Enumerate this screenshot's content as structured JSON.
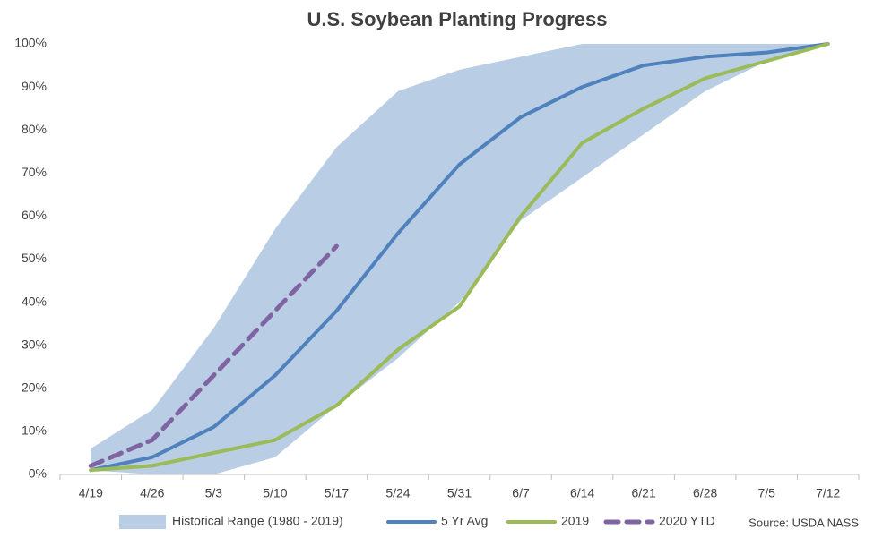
{
  "chart_data": {
    "type": "line",
    "title": "U.S. Soybean Planting Progress",
    "categories": [
      "4/19",
      "4/26",
      "5/3",
      "5/10",
      "5/17",
      "5/24",
      "5/31",
      "6/7",
      "6/14",
      "6/21",
      "6/28",
      "7/5",
      "7/12"
    ],
    "series": [
      {
        "name": "Historical Range (1980 - 2019)",
        "color": "#b9cde5",
        "style": "range",
        "values": [
          6,
          15,
          34,
          57,
          76,
          89,
          94,
          97,
          100,
          100,
          100,
          100,
          100
        ],
        "lower": [
          1,
          0,
          0,
          4,
          16,
          27,
          40,
          59,
          69,
          79,
          89,
          96,
          100
        ]
      },
      {
        "name": "5 Yr Avg",
        "color": "#4f81bd",
        "style": "solid",
        "values": [
          1,
          4,
          11,
          23,
          38,
          56,
          72,
          83,
          90,
          95,
          97,
          98,
          100
        ]
      },
      {
        "name": "2019",
        "color": "#9bbb59",
        "style": "solid",
        "values": [
          1,
          2,
          5,
          8,
          16,
          29,
          39,
          60,
          77,
          85,
          92,
          96,
          100
        ]
      },
      {
        "name": "2020 YTD",
        "color": "#8064a2",
        "style": "dashed",
        "values": [
          2,
          8,
          23,
          38,
          53,
          null,
          null,
          null,
          null,
          null,
          null,
          null,
          null
        ]
      }
    ],
    "ylim": [
      0,
      100
    ],
    "yticks": [
      {
        "value": 0,
        "label": "0%"
      },
      {
        "value": 10,
        "label": "10%"
      },
      {
        "value": 20,
        "label": "20%"
      },
      {
        "value": 30,
        "label": "30%"
      },
      {
        "value": 40,
        "label": "40%"
      },
      {
        "value": 50,
        "label": "50%"
      },
      {
        "value": 60,
        "label": "60%"
      },
      {
        "value": 70,
        "label": "70%"
      },
      {
        "value": 80,
        "label": "80%"
      },
      {
        "value": 90,
        "label": "90%"
      },
      {
        "value": 100,
        "label": "100%"
      }
    ],
    "grid": false,
    "legend": "bottom",
    "source": "Source: USDA NASS"
  }
}
